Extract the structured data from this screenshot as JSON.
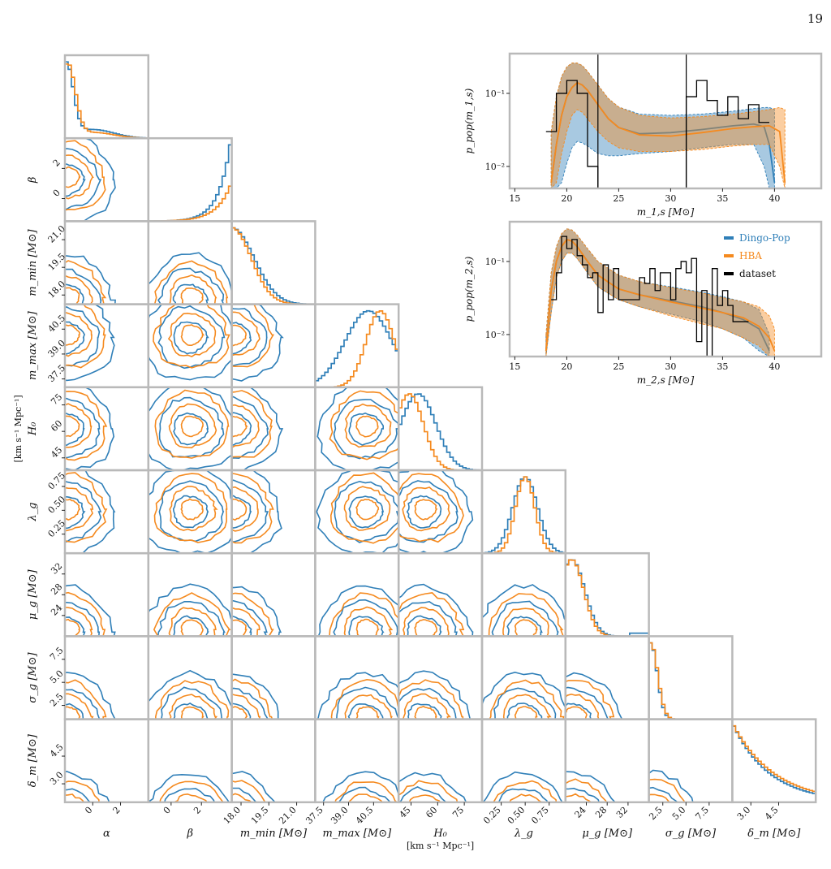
{
  "page_number": "19",
  "colors": {
    "dingo_pop": "#2f7fb8",
    "hba": "#f58a1f",
    "dataset": "#000000",
    "frame": "#b9b9b9"
  },
  "chart_data": [
    {
      "type": "corner",
      "parameters": [
        {
          "id": "alpha",
          "label": "α",
          "range": [
            -2,
            4
          ],
          "ticks": [
            "0",
            "2"
          ]
        },
        {
          "id": "beta",
          "label": "β",
          "range": [
            -1.5,
            4
          ],
          "ticks": [
            "0",
            "2"
          ]
        },
        {
          "id": "m_min",
          "label": "m_min [M⊙]",
          "range": [
            17.5,
            22
          ],
          "ticks": [
            "18.0",
            "19.5",
            "21.0"
          ]
        },
        {
          "id": "m_max",
          "label": "m_max [M⊙]",
          "range": [
            37,
            42
          ],
          "ticks": [
            "37.5",
            "39.0",
            "40.5"
          ]
        },
        {
          "id": "H0",
          "label": "H₀",
          "unit": "[km s⁻¹ Mpc⁻¹]",
          "range": [
            38,
            85
          ],
          "ticks": [
            "45",
            "60",
            "75"
          ]
        },
        {
          "id": "lambda_g",
          "label": "λ_g",
          "range": [
            0.05,
            0.92
          ],
          "ticks": [
            "0.25",
            "0.50",
            "0.75"
          ]
        },
        {
          "id": "mu_g",
          "label": "μ_g [M⊙]",
          "range": [
            20,
            36
          ],
          "ticks": [
            "24",
            "28",
            "32"
          ]
        },
        {
          "id": "sigma_g",
          "label": "σ_g [M⊙]",
          "range": [
            1,
            10
          ],
          "ticks": [
            "2.5",
            "5.0",
            "7.5"
          ]
        },
        {
          "id": "delta_m",
          "label": "δ_m [M⊙]",
          "range": [
            2,
            6.5
          ],
          "ticks": [
            "3.0",
            "4.5"
          ]
        }
      ],
      "series": [
        {
          "name": "Dingo-Pop"
        },
        {
          "name": "HBA"
        }
      ]
    },
    {
      "type": "line",
      "xlabel": "m_1,s [M⊙]",
      "ylabel": "p_pop(m_1,s)",
      "xlim": [
        14.5,
        44.5
      ],
      "ylim": [
        0.005,
        0.35
      ],
      "yscale": "log",
      "xticks": [
        15,
        20,
        25,
        30,
        35,
        40
      ],
      "yticks": [
        "10⁻²",
        "10⁻¹"
      ],
      "series": [
        {
          "name": "Dingo-Pop",
          "x": [
            18.5,
            19.0,
            19.5,
            20.0,
            20.5,
            21.0,
            21.5,
            22.0,
            23.0,
            24.0,
            25.0,
            27.0,
            30.0,
            33.0,
            36.0,
            38.0,
            39.0,
            39.5,
            40.0
          ],
          "y": [
            0.006,
            0.02,
            0.05,
            0.09,
            0.12,
            0.14,
            0.13,
            0.11,
            0.07,
            0.045,
            0.034,
            0.028,
            0.029,
            0.032,
            0.036,
            0.038,
            0.035,
            0.02,
            0.006
          ],
          "band_low": [
            0.005,
            0.005,
            0.006,
            0.011,
            0.018,
            0.022,
            0.021,
            0.019,
            0.015,
            0.014,
            0.014,
            0.015,
            0.016,
            0.018,
            0.02,
            0.02,
            0.01,
            0.005,
            0.005
          ],
          "band_high": [
            0.03,
            0.09,
            0.17,
            0.23,
            0.26,
            0.26,
            0.24,
            0.2,
            0.13,
            0.085,
            0.065,
            0.052,
            0.05,
            0.052,
            0.057,
            0.062,
            0.064,
            0.064,
            0.06
          ]
        },
        {
          "name": "HBA",
          "x": [
            18.5,
            19.0,
            19.5,
            20.0,
            20.5,
            21.0,
            21.5,
            22.0,
            23.0,
            24.0,
            25.0,
            27.0,
            30.0,
            33.0,
            36.0,
            38.0,
            39.5,
            40.5,
            41.0
          ],
          "y": [
            0.006,
            0.02,
            0.05,
            0.09,
            0.12,
            0.14,
            0.13,
            0.11,
            0.07,
            0.045,
            0.034,
            0.027,
            0.026,
            0.029,
            0.033,
            0.035,
            0.036,
            0.03,
            0.006
          ],
          "band_low": [
            0.005,
            0.006,
            0.015,
            0.03,
            0.05,
            0.06,
            0.055,
            0.045,
            0.03,
            0.022,
            0.018,
            0.016,
            0.016,
            0.017,
            0.019,
            0.02,
            0.02,
            0.01,
            0.005
          ],
          "band_high": [
            0.03,
            0.09,
            0.17,
            0.23,
            0.26,
            0.26,
            0.24,
            0.2,
            0.13,
            0.085,
            0.065,
            0.05,
            0.046,
            0.048,
            0.052,
            0.056,
            0.06,
            0.064,
            0.06
          ]
        },
        {
          "name": "dataset",
          "type": "step",
          "edges": [
            18.0,
            19.0,
            20.0,
            21.0,
            22.0,
            23.0,
            31.5,
            32.5,
            33.5,
            34.5,
            35.5,
            36.5,
            37.5,
            38.5,
            39.5
          ],
          "values": [
            0.03,
            0.1,
            0.15,
            0.1,
            0.01,
            0.005,
            0.09,
            0.15,
            0.08,
            0.05,
            0.09,
            0.045,
            0.07,
            0.04
          ],
          "vlines": [
            23.0,
            31.5
          ]
        }
      ]
    },
    {
      "type": "line",
      "xlabel": "m_2,s [M⊙]",
      "ylabel": "p_pop(m_2,s)",
      "xlim": [
        14.5,
        44.5
      ],
      "ylim": [
        0.005,
        0.35
      ],
      "yscale": "log",
      "xticks": [
        15,
        20,
        25,
        30,
        35,
        40
      ],
      "yticks": [
        "10⁻²",
        "10⁻¹"
      ],
      "legend": {
        "position": "top-right",
        "entries": [
          "Dingo-Pop",
          "HBA",
          "dataset"
        ]
      },
      "series": [
        {
          "name": "Dingo-Pop",
          "x": [
            18.0,
            18.5,
            19.0,
            19.5,
            20.0,
            20.5,
            21.0,
            22.0,
            23.0,
            25.0,
            27.0,
            30.0,
            33.0,
            35.0,
            37.0,
            38.5,
            39.5
          ],
          "y": [
            0.006,
            0.04,
            0.1,
            0.16,
            0.2,
            0.19,
            0.16,
            0.1,
            0.065,
            0.042,
            0.035,
            0.029,
            0.024,
            0.02,
            0.016,
            0.012,
            0.006
          ],
          "band_low": [
            0.005,
            0.02,
            0.06,
            0.1,
            0.13,
            0.13,
            0.11,
            0.07,
            0.045,
            0.03,
            0.024,
            0.019,
            0.015,
            0.012,
            0.009,
            0.006,
            0.005
          ],
          "band_high": [
            0.01,
            0.07,
            0.16,
            0.24,
            0.28,
            0.27,
            0.23,
            0.15,
            0.1,
            0.065,
            0.053,
            0.045,
            0.038,
            0.033,
            0.028,
            0.022,
            0.01
          ]
        },
        {
          "name": "HBA",
          "x": [
            18.0,
            18.5,
            19.0,
            19.5,
            20.0,
            20.5,
            21.0,
            22.0,
            23.0,
            25.0,
            27.0,
            30.0,
            33.0,
            35.0,
            37.0,
            38.5,
            39.5,
            40.0
          ],
          "y": [
            0.006,
            0.04,
            0.1,
            0.16,
            0.2,
            0.19,
            0.16,
            0.1,
            0.065,
            0.042,
            0.035,
            0.028,
            0.023,
            0.02,
            0.017,
            0.013,
            0.009,
            0.006
          ],
          "band_low": [
            0.005,
            0.02,
            0.06,
            0.1,
            0.13,
            0.13,
            0.11,
            0.07,
            0.045,
            0.03,
            0.024,
            0.018,
            0.014,
            0.012,
            0.009,
            0.007,
            0.005,
            0.005
          ],
          "band_high": [
            0.01,
            0.07,
            0.16,
            0.24,
            0.28,
            0.27,
            0.23,
            0.15,
            0.1,
            0.065,
            0.053,
            0.044,
            0.037,
            0.032,
            0.028,
            0.024,
            0.018,
            0.012
          ]
        },
        {
          "name": "dataset",
          "type": "step",
          "edges": [
            18.5,
            19.0,
            19.5,
            20.0,
            20.5,
            21.0,
            21.5,
            22.0,
            22.5,
            23.0,
            23.5,
            24.0,
            24.5,
            25.0,
            26.5,
            27.0,
            27.5,
            28.0,
            28.5,
            29.0,
            30.0,
            30.5,
            31.0,
            31.5,
            32.0,
            32.5,
            33.0,
            33.5,
            34.0,
            34.5,
            35.0,
            35.5,
            36.0,
            37.5
          ],
          "values": [
            0.03,
            0.07,
            0.22,
            0.15,
            0.2,
            0.12,
            0.09,
            0.06,
            0.07,
            0.02,
            0.09,
            0.03,
            0.08,
            0.03,
            0.03,
            0.06,
            0.05,
            0.08,
            0.04,
            0.07,
            0.03,
            0.08,
            0.1,
            0.07,
            0.11,
            0.008,
            0.04,
            0.005,
            0.08,
            0.025,
            0.04,
            0.025,
            0.015
          ],
          "vlines": []
        }
      ]
    }
  ]
}
